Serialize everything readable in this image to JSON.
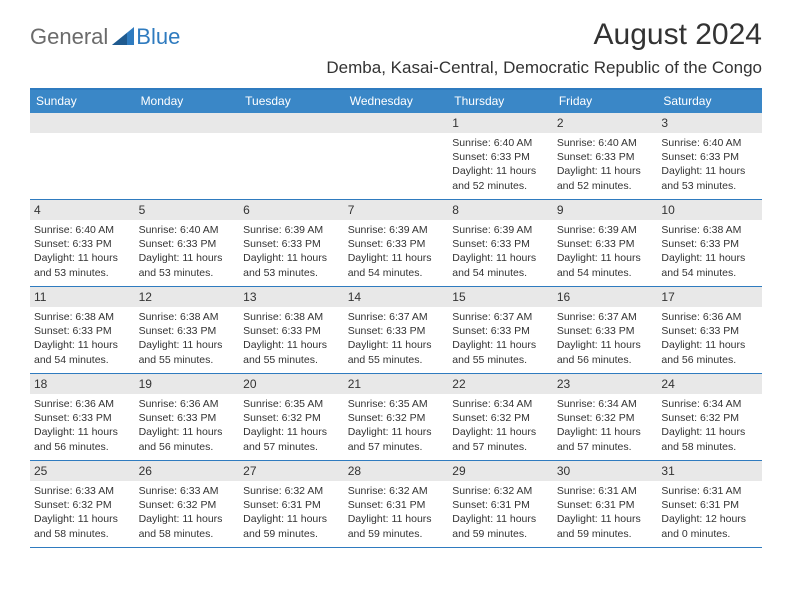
{
  "brand": {
    "part1": "General",
    "part2": "Blue"
  },
  "title": "August 2024",
  "location": "Demba, Kasai-Central, Democratic Republic of the Congo",
  "colors": {
    "header_bg": "#3a87c7",
    "border": "#2f7bbf",
    "daynum_bg": "#e8e8e8",
    "text": "#333333",
    "logo_gray": "#6b6b6b",
    "logo_blue": "#2f7bbf"
  },
  "dayNames": [
    "Sunday",
    "Monday",
    "Tuesday",
    "Wednesday",
    "Thursday",
    "Friday",
    "Saturday"
  ],
  "firstDayOffset": 4,
  "days": [
    {
      "n": 1,
      "sr": "6:40 AM",
      "ss": "6:33 PM",
      "dl": "11 hours and 52 minutes."
    },
    {
      "n": 2,
      "sr": "6:40 AM",
      "ss": "6:33 PM",
      "dl": "11 hours and 52 minutes."
    },
    {
      "n": 3,
      "sr": "6:40 AM",
      "ss": "6:33 PM",
      "dl": "11 hours and 53 minutes."
    },
    {
      "n": 4,
      "sr": "6:40 AM",
      "ss": "6:33 PM",
      "dl": "11 hours and 53 minutes."
    },
    {
      "n": 5,
      "sr": "6:40 AM",
      "ss": "6:33 PM",
      "dl": "11 hours and 53 minutes."
    },
    {
      "n": 6,
      "sr": "6:39 AM",
      "ss": "6:33 PM",
      "dl": "11 hours and 53 minutes."
    },
    {
      "n": 7,
      "sr": "6:39 AM",
      "ss": "6:33 PM",
      "dl": "11 hours and 54 minutes."
    },
    {
      "n": 8,
      "sr": "6:39 AM",
      "ss": "6:33 PM",
      "dl": "11 hours and 54 minutes."
    },
    {
      "n": 9,
      "sr": "6:39 AM",
      "ss": "6:33 PM",
      "dl": "11 hours and 54 minutes."
    },
    {
      "n": 10,
      "sr": "6:38 AM",
      "ss": "6:33 PM",
      "dl": "11 hours and 54 minutes."
    },
    {
      "n": 11,
      "sr": "6:38 AM",
      "ss": "6:33 PM",
      "dl": "11 hours and 54 minutes."
    },
    {
      "n": 12,
      "sr": "6:38 AM",
      "ss": "6:33 PM",
      "dl": "11 hours and 55 minutes."
    },
    {
      "n": 13,
      "sr": "6:38 AM",
      "ss": "6:33 PM",
      "dl": "11 hours and 55 minutes."
    },
    {
      "n": 14,
      "sr": "6:37 AM",
      "ss": "6:33 PM",
      "dl": "11 hours and 55 minutes."
    },
    {
      "n": 15,
      "sr": "6:37 AM",
      "ss": "6:33 PM",
      "dl": "11 hours and 55 minutes."
    },
    {
      "n": 16,
      "sr": "6:37 AM",
      "ss": "6:33 PM",
      "dl": "11 hours and 56 minutes."
    },
    {
      "n": 17,
      "sr": "6:36 AM",
      "ss": "6:33 PM",
      "dl": "11 hours and 56 minutes."
    },
    {
      "n": 18,
      "sr": "6:36 AM",
      "ss": "6:33 PM",
      "dl": "11 hours and 56 minutes."
    },
    {
      "n": 19,
      "sr": "6:36 AM",
      "ss": "6:33 PM",
      "dl": "11 hours and 56 minutes."
    },
    {
      "n": 20,
      "sr": "6:35 AM",
      "ss": "6:32 PM",
      "dl": "11 hours and 57 minutes."
    },
    {
      "n": 21,
      "sr": "6:35 AM",
      "ss": "6:32 PM",
      "dl": "11 hours and 57 minutes."
    },
    {
      "n": 22,
      "sr": "6:34 AM",
      "ss": "6:32 PM",
      "dl": "11 hours and 57 minutes."
    },
    {
      "n": 23,
      "sr": "6:34 AM",
      "ss": "6:32 PM",
      "dl": "11 hours and 57 minutes."
    },
    {
      "n": 24,
      "sr": "6:34 AM",
      "ss": "6:32 PM",
      "dl": "11 hours and 58 minutes."
    },
    {
      "n": 25,
      "sr": "6:33 AM",
      "ss": "6:32 PM",
      "dl": "11 hours and 58 minutes."
    },
    {
      "n": 26,
      "sr": "6:33 AM",
      "ss": "6:32 PM",
      "dl": "11 hours and 58 minutes."
    },
    {
      "n": 27,
      "sr": "6:32 AM",
      "ss": "6:31 PM",
      "dl": "11 hours and 59 minutes."
    },
    {
      "n": 28,
      "sr": "6:32 AM",
      "ss": "6:31 PM",
      "dl": "11 hours and 59 minutes."
    },
    {
      "n": 29,
      "sr": "6:32 AM",
      "ss": "6:31 PM",
      "dl": "11 hours and 59 minutes."
    },
    {
      "n": 30,
      "sr": "6:31 AM",
      "ss": "6:31 PM",
      "dl": "11 hours and 59 minutes."
    },
    {
      "n": 31,
      "sr": "6:31 AM",
      "ss": "6:31 PM",
      "dl": "12 hours and 0 minutes."
    }
  ],
  "labels": {
    "sunrise": "Sunrise:",
    "sunset": "Sunset:",
    "daylight": "Daylight:"
  }
}
